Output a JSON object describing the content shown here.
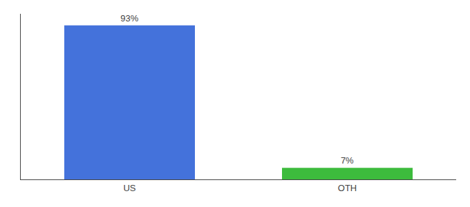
{
  "chart_data": {
    "type": "bar",
    "categories": [
      "US",
      "OTH"
    ],
    "values": [
      93,
      7
    ],
    "value_labels": [
      "93%",
      "7%"
    ],
    "data_labels": true,
    "colors": [
      "#4472db",
      "#3dbb3d"
    ],
    "ylim": [
      0,
      100
    ],
    "tick_labels": "x",
    "grid": false
  }
}
